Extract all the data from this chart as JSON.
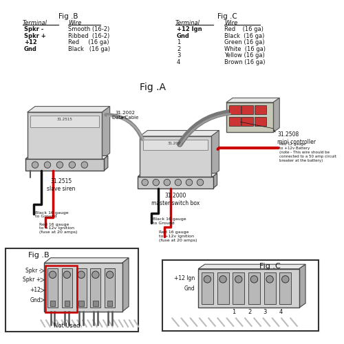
{
  "bg_color": "#ffffff",
  "fig_a_title": "Fig .A",
  "fig_b_title": "Fig .B",
  "fig_c_title": "Fig .C",
  "fig_b_table": {
    "rows": [
      [
        "Spkr -",
        "Smooth (16-2)"
      ],
      [
        "Spkr +",
        "Ribbed  (16-2)"
      ],
      [
        "+12",
        "Red     (16 ga)"
      ],
      [
        "Gnd",
        "Black   (16 ga)"
      ]
    ]
  },
  "fig_c_table": {
    "rows": [
      [
        "+12 Ign",
        "Red    (16 ga)"
      ],
      [
        "Gnd",
        "Black  (16 ga)"
      ],
      [
        "1",
        "Green (16 ga)"
      ],
      [
        "2",
        "White  (16 ga)"
      ],
      [
        "3",
        "Yellow (16 ga)"
      ],
      [
        "4",
        "Brown (16 ga)"
      ]
    ]
  },
  "labels": {
    "data_cable": "31.2002\nData Cable",
    "slave_siren": "31.2515\nslave siren",
    "mini_controller": "31.2508\nmini controller",
    "master_switch_box": "31.2000\nmaster switch box",
    "black_16_gnd_left": "Black 16 gauge\nto Ground",
    "red_16_ign_left": "Red 16 gauge\nto +12v Ignition\n(fuse at 20 amps)",
    "black_16_gnd_right": "Black 16 gauge\nto Ground",
    "red_16_ign_right": "Red 16 gauge\nto +12v Ignition\n(fuse at 20 amps)",
    "red_12_battery": "Red 12 gauge\nto +12v Battery\n(note - This wire should be\nconnected to a 50 amp circuit\nbreaker at the battery)",
    "not_used": "Not Used"
  },
  "colors": {
    "background": "#ffffff",
    "box_fill": "#cccccc",
    "box_top": "#e8e8e8",
    "box_right": "#aaaaaa",
    "box_edge": "#444444",
    "red_wire": "#cc0000",
    "black_wire": "#111111",
    "gray_wire": "#777777",
    "gray_wire2": "#aaaaaa",
    "text": "#111111",
    "terminal_fill": "#bbbbbb",
    "screw_fill": "#999999",
    "mini_ctrl_btn": "#cc3333",
    "mini_ctrl_body": "#c8c8b8",
    "fig_b_highlight": "#cc0000"
  }
}
